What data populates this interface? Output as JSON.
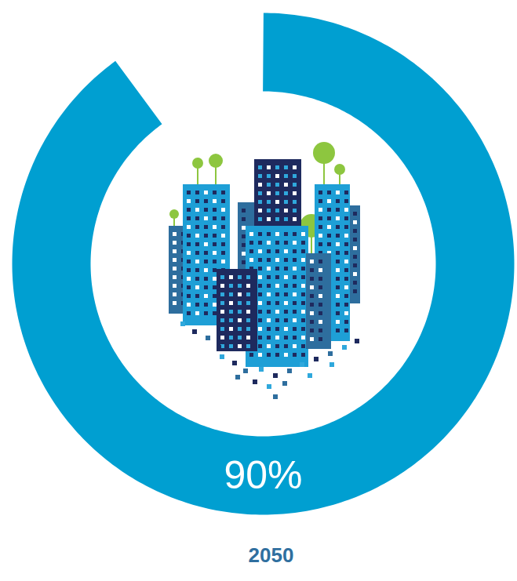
{
  "chart_data": {
    "type": "donut",
    "categories": [
      "2050"
    ],
    "values": [
      90
    ],
    "value_labels": [
      "90%"
    ],
    "ylim": [
      0,
      100
    ],
    "color": "#009fd1",
    "data_labels": true
  }
}
